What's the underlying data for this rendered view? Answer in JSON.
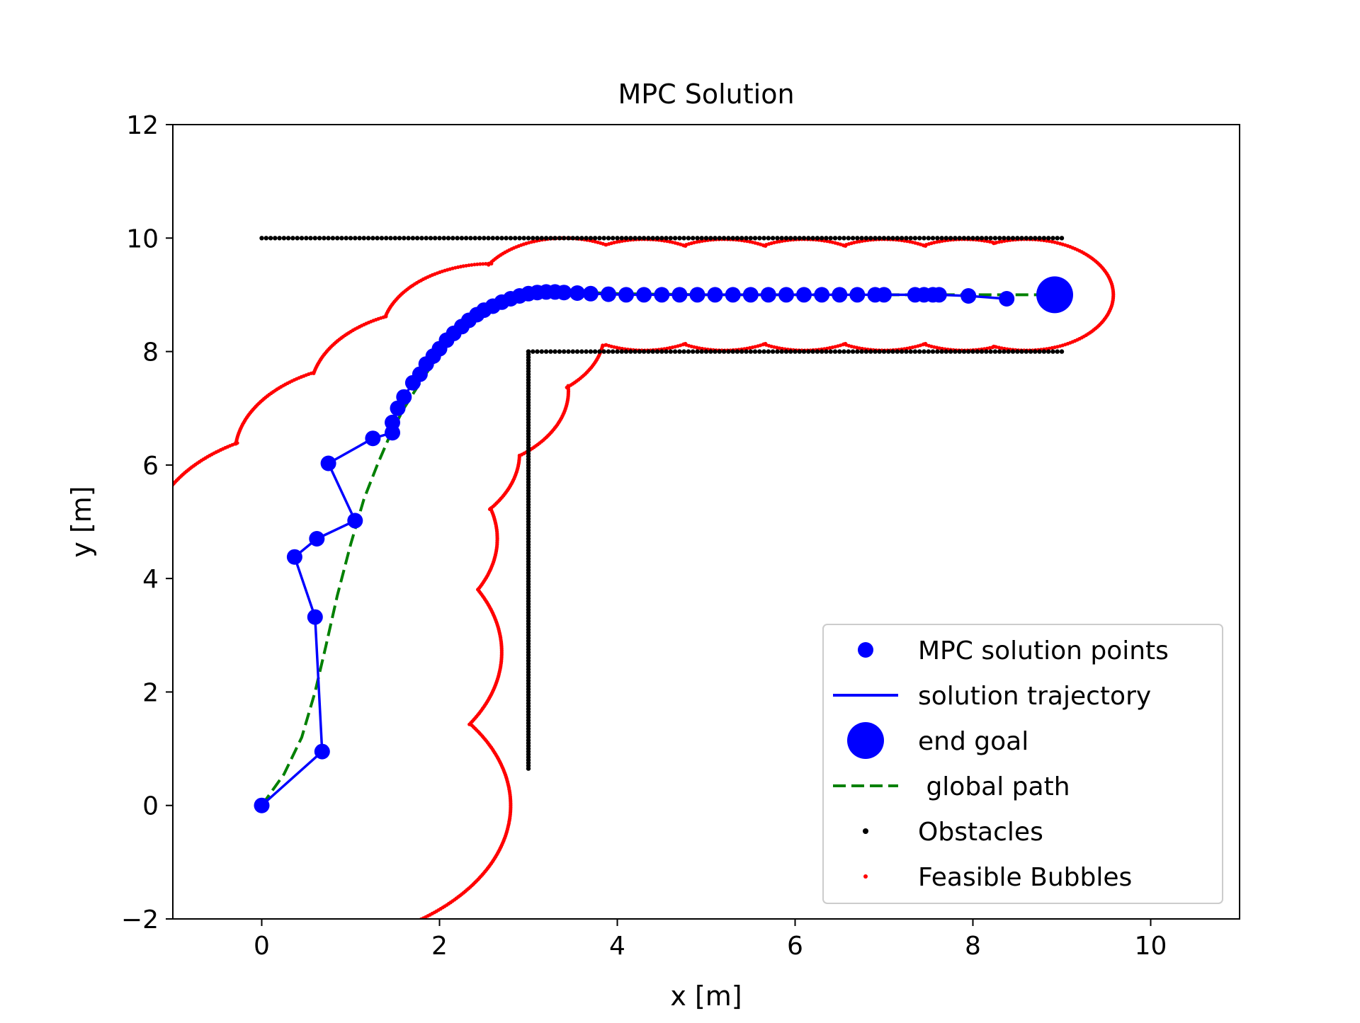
{
  "chart_data": {
    "type": "scatter",
    "title": "MPC Solution",
    "xlabel": "x [m]",
    "ylabel": "y [m]",
    "xlim": [
      -1,
      11
    ],
    "ylim": [
      -2,
      12
    ],
    "xticks": [
      0,
      2,
      4,
      6,
      8,
      10
    ],
    "yticks": [
      -2,
      0,
      2,
      4,
      6,
      8,
      10,
      12
    ],
    "xtick_labels": [
      "0",
      "2",
      "4",
      "6",
      "8",
      "10"
    ],
    "ytick_labels": [
      "−2",
      "0",
      "2",
      "4",
      "6",
      "8",
      "10",
      "12"
    ],
    "grid": false,
    "legend_position": "lower right",
    "legend": [
      {
        "label": "MPC solution points",
        "marker": "big-dot",
        "color": "#0000ff"
      },
      {
        "label": "solution trajectory",
        "marker": "line",
        "color": "#0000ff"
      },
      {
        "label": "end goal",
        "marker": "huge-dot",
        "color": "#0000ff"
      },
      {
        "label": " global path",
        "marker": "dashed-line",
        "color": "#008000"
      },
      {
        "label": "Obstacles",
        "marker": "small-dot",
        "color": "#000000"
      },
      {
        "label": "Feasible Bubbles",
        "marker": "tiny-dot",
        "color": "#ff0000"
      }
    ],
    "series": [
      {
        "name": "MPC solution points",
        "color": "#0000ff",
        "x": [
          0,
          0.68,
          0.6,
          0.37,
          0.62,
          1.05,
          0.75,
          1.25,
          1.47,
          1.47,
          1.53,
          1.6,
          1.7,
          1.78,
          1.85,
          1.93,
          2.0,
          2.08,
          2.16,
          2.25,
          2.33,
          2.42,
          2.5,
          2.6,
          2.7,
          2.8,
          2.9,
          3.0,
          3.1,
          3.2,
          3.3,
          3.4,
          3.55,
          3.7,
          3.9,
          4.1,
          4.3,
          4.5,
          4.7,
          4.9,
          5.1,
          5.3,
          5.5,
          5.7,
          5.9,
          6.1,
          6.3,
          6.5,
          6.7,
          6.9,
          7.0,
          7.35,
          7.45,
          7.55,
          7.62,
          7.95,
          8.38
        ],
        "y": [
          0,
          0.95,
          3.32,
          4.38,
          4.7,
          5.02,
          6.03,
          6.47,
          6.57,
          6.75,
          7.0,
          7.2,
          7.45,
          7.6,
          7.78,
          7.92,
          8.05,
          8.2,
          8.32,
          8.44,
          8.55,
          8.65,
          8.73,
          8.8,
          8.87,
          8.93,
          8.98,
          9.02,
          9.04,
          9.05,
          9.05,
          9.04,
          9.03,
          9.02,
          9.01,
          9.0,
          9.0,
          9.0,
          9.0,
          9.0,
          9.0,
          9.0,
          9.0,
          9.0,
          9.0,
          9.0,
          9.0,
          9.0,
          9.0,
          9.0,
          9.0,
          9.0,
          9.0,
          9.0,
          9.0,
          8.98,
          8.93
        ]
      },
      {
        "name": "solution trajectory",
        "color": "#0000ff",
        "x": [
          0,
          0.68,
          0.6,
          0.37,
          0.62,
          1.05,
          0.75,
          1.25,
          1.47,
          1.47,
          1.53,
          1.6,
          1.7,
          1.78,
          1.85,
          1.93,
          2.0,
          2.08,
          2.16,
          2.25,
          2.33,
          2.42,
          2.5,
          2.6,
          2.7,
          2.8,
          2.9,
          3.0,
          3.1,
          3.2,
          3.3,
          3.4,
          3.55,
          3.7,
          3.9,
          4.1,
          4.3,
          4.5,
          4.7,
          4.9,
          5.1,
          5.3,
          5.5,
          5.7,
          5.9,
          6.1,
          6.3,
          6.5,
          6.7,
          6.9,
          7.0,
          7.35,
          7.45,
          7.55,
          7.62,
          7.95,
          8.38
        ],
        "y": [
          0,
          0.95,
          3.32,
          4.38,
          4.7,
          5.02,
          6.03,
          6.47,
          6.57,
          6.75,
          7.0,
          7.2,
          7.45,
          7.6,
          7.78,
          7.92,
          8.05,
          8.2,
          8.32,
          8.44,
          8.55,
          8.65,
          8.73,
          8.8,
          8.87,
          8.93,
          8.98,
          9.02,
          9.04,
          9.05,
          9.05,
          9.04,
          9.03,
          9.02,
          9.01,
          9.0,
          9.0,
          9.0,
          9.0,
          9.0,
          9.0,
          9.0,
          9.0,
          9.0,
          9.0,
          9.0,
          9.0,
          9.0,
          9.0,
          9.0,
          9.0,
          9.0,
          9.0,
          9.0,
          9.0,
          8.98,
          8.93
        ]
      },
      {
        "name": "end goal",
        "color": "#0000ff",
        "x": [
          8.92
        ],
        "y": [
          9.0
        ]
      },
      {
        "name": " global path",
        "color": "#008000",
        "x": [
          0,
          0.25,
          0.45,
          0.6,
          0.72,
          0.85,
          1.0,
          1.15,
          1.3,
          1.45,
          1.6,
          1.8,
          2.0,
          2.2,
          2.4,
          2.6,
          2.8,
          3.0,
          3.2,
          3.5,
          4.0,
          5.0,
          6.0,
          7.0,
          8.0,
          9.0
        ],
        "y": [
          0,
          0.55,
          1.2,
          2.0,
          2.8,
          3.7,
          4.6,
          5.4,
          6.0,
          6.55,
          7.0,
          7.5,
          7.95,
          8.3,
          8.58,
          8.78,
          8.92,
          9.0,
          9.05,
          9.05,
          9.02,
          9.0,
          9.0,
          9.0,
          9.0,
          9.0
        ]
      },
      {
        "name": "Obstacles",
        "color": "#000000",
        "segments": [
          {
            "x_from": 0.0,
            "x_to": 9.0,
            "y": 10.0
          },
          {
            "x_from": 3.0,
            "x_to": 9.0,
            "y": 8.0
          },
          {
            "x": 3.0,
            "y_from": 0.65,
            "y_to": 8.0
          }
        ]
      },
      {
        "name": "Feasible Bubbles",
        "color": "#ff0000",
        "bubbles": [
          {
            "cx": 0.3,
            "cy": 0.0,
            "r": 2.5
          },
          {
            "cx": 0.3,
            "cy": 2.7,
            "r": 2.4
          },
          {
            "cx": 0.7,
            "cy": 4.7,
            "r": 1.95
          },
          {
            "cx": 1.3,
            "cy": 6.2,
            "r": 1.6
          },
          {
            "cx": 2.0,
            "cy": 7.3,
            "r": 1.45
          },
          {
            "cx": 2.6,
            "cy": 8.3,
            "r": 1.25
          },
          {
            "cx": 3.4,
            "cy": 9.0,
            "r": 1.0
          },
          {
            "cx": 4.3,
            "cy": 9.0,
            "r": 0.98
          },
          {
            "cx": 5.2,
            "cy": 9.0,
            "r": 0.98
          },
          {
            "cx": 6.1,
            "cy": 9.0,
            "r": 0.98
          },
          {
            "cx": 7.0,
            "cy": 9.0,
            "r": 0.98
          },
          {
            "cx": 7.9,
            "cy": 9.0,
            "r": 0.98
          },
          {
            "cx": 8.6,
            "cy": 9.0,
            "r": 0.98
          }
        ]
      }
    ]
  }
}
